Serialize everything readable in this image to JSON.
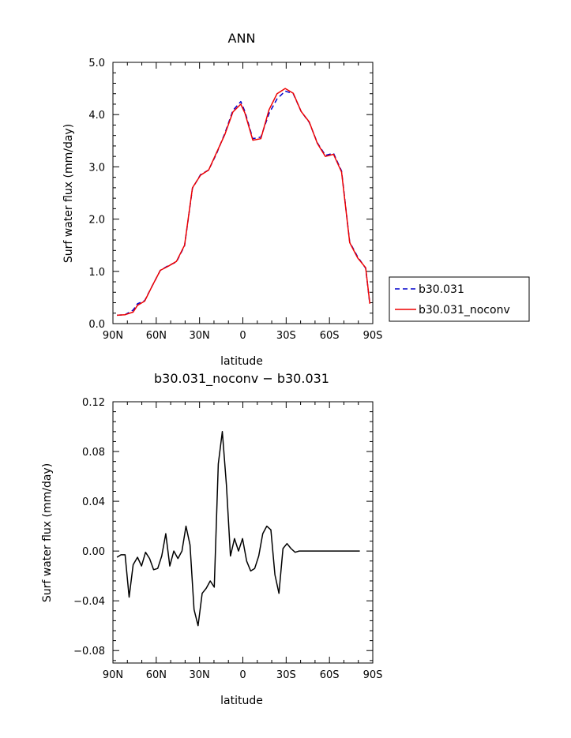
{
  "chart_data": [
    {
      "type": "line",
      "title": "ANN",
      "xlabel": "latitude",
      "ylabel": "Surf water flux (mm/day)",
      "xlim": [
        90,
        -90
      ],
      "ylim": [
        0.0,
        5.0
      ],
      "x_tick_values": [
        90,
        60,
        30,
        0,
        -30,
        -60,
        -90
      ],
      "x_tick_labels": [
        "90N",
        "60N",
        "30N",
        "0",
        "30S",
        "60S",
        "90S"
      ],
      "y_tick_values": [
        0.0,
        1.0,
        2.0,
        3.0,
        4.0,
        5.0
      ],
      "y_tick_labels": [
        "0.0",
        "1.0",
        "2.0",
        "3.0",
        "4.0",
        "5.0"
      ],
      "legend_position": "right, outside",
      "x": [
        87.2,
        81.6,
        76.0,
        73.0,
        68.0,
        62.8,
        57.2,
        51.6,
        46.0,
        40.4,
        34.9,
        29.3,
        23.7,
        18.1,
        12.5,
        6.9,
        1.4,
        -1.4,
        -6.9,
        -12.5,
        -18.1,
        -23.7,
        -29.3,
        -34.9,
        -40.4,
        -46.0,
        -51.6,
        -57.2,
        -62.8,
        -68.4,
        -74.0,
        -79.5,
        -85.1,
        -88.0
      ],
      "series": [
        {
          "name": "b30.031",
          "color": "#0000cc",
          "style": "dashed",
          "values": [
            0.16,
            0.17,
            0.26,
            0.38,
            0.44,
            0.72,
            1.02,
            1.11,
            1.18,
            1.49,
            2.59,
            2.85,
            2.94,
            3.26,
            3.64,
            4.08,
            4.25,
            4.06,
            3.54,
            3.57,
            4.02,
            4.3,
            4.45,
            4.4,
            4.06,
            3.85,
            3.46,
            3.22,
            3.26,
            2.92,
            1.56,
            1.28,
            1.06,
            0.37
          ]
        },
        {
          "name": "b30.031_noconv",
          "color": "#ee0000",
          "style": "solid",
          "values": [
            0.16,
            0.17,
            0.22,
            0.35,
            0.43,
            0.72,
            1.02,
            1.1,
            1.19,
            1.5,
            2.6,
            2.84,
            2.94,
            3.28,
            3.62,
            4.05,
            4.2,
            4.03,
            3.51,
            3.54,
            4.09,
            4.4,
            4.5,
            4.41,
            4.06,
            3.86,
            3.45,
            3.2,
            3.24,
            2.9,
            1.55,
            1.26,
            1.07,
            0.38
          ]
        }
      ]
    },
    {
      "type": "line",
      "title": "b30.031_noconv − b30.031",
      "xlabel": "latitude",
      "ylabel": "Surf water flux (mm/day)",
      "xlim": [
        90,
        -90
      ],
      "ylim": [
        -0.09,
        0.12
      ],
      "x_tick_values": [
        90,
        60,
        30,
        0,
        -30,
        -60,
        -90
      ],
      "x_tick_labels": [
        "90N",
        "60N",
        "30N",
        "0",
        "30S",
        "60S",
        "90S"
      ],
      "y_tick_values": [
        -0.08,
        -0.04,
        0.0,
        0.04,
        0.08,
        0.12
      ],
      "y_tick_labels": [
        "−0.08",
        "−0.04",
        "0.00",
        "0.04",
        "0.08",
        "0.12"
      ],
      "x": [
        87.2,
        84.4,
        81.6,
        78.8,
        76.0,
        73.0,
        70.2,
        67.4,
        64.6,
        61.8,
        59.0,
        56.2,
        53.4,
        50.6,
        47.8,
        45.0,
        42.2,
        39.4,
        36.6,
        33.8,
        31.0,
        28.2,
        25.4,
        22.6,
        19.8,
        17.0,
        14.2,
        11.4,
        8.6,
        5.8,
        3.0,
        0.2,
        -2.6,
        -5.4,
        -8.2,
        -11.0,
        -13.8,
        -16.6,
        -19.4,
        -22.2,
        -25.0,
        -27.8,
        -30.6,
        -33.4,
        -36.2,
        -39.0,
        -41.8,
        -44.6,
        -47.4,
        -50.2,
        -53.0,
        -55.8,
        -58.6,
        -61.4,
        -64.2,
        -67.0,
        -69.8,
        -72.6,
        -75.4,
        -78.2,
        -81.0
      ],
      "series": [
        {
          "color": "#000000",
          "style": "solid",
          "values": [
            -0.005,
            -0.003,
            -0.003,
            -0.037,
            -0.011,
            -0.005,
            -0.012,
            -0.001,
            -0.006,
            -0.015,
            -0.014,
            -0.004,
            0.014,
            -0.012,
            0.0,
            -0.006,
            0.0,
            0.02,
            0.005,
            -0.047,
            -0.06,
            -0.034,
            -0.03,
            -0.024,
            -0.029,
            0.07,
            0.096,
            0.053,
            -0.004,
            0.01,
            0.0,
            0.01,
            -0.008,
            -0.016,
            -0.014,
            -0.004,
            0.014,
            0.02,
            0.017,
            -0.019,
            -0.034,
            0.002,
            0.006,
            0.002,
            -0.001,
            0.0,
            0.0,
            0.0,
            0.0,
            0.0,
            0.0,
            0.0,
            0.0,
            0.0,
            0.0,
            0.0,
            0.0,
            0.0,
            0.0,
            0.0,
            0.0
          ]
        }
      ]
    }
  ]
}
